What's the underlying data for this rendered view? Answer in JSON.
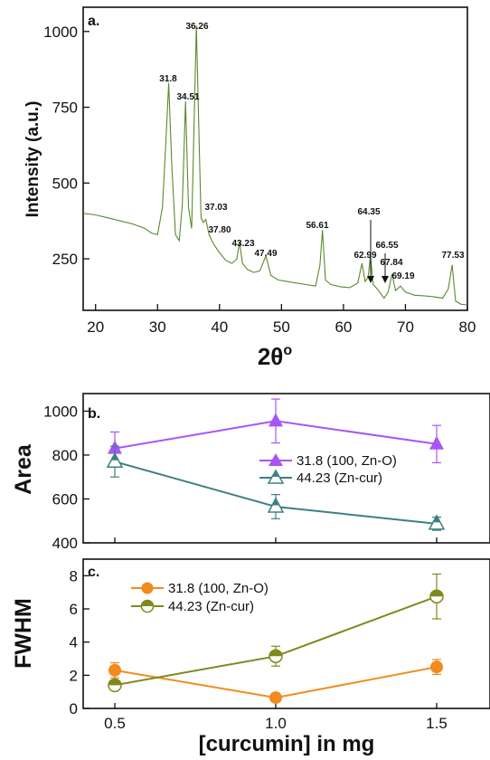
{
  "chart_data": [
    {
      "type": "line",
      "panel_label": "a.",
      "xlabel": "2θ",
      "xlabel_sup": "o",
      "ylabel": "Intensity (a.u.)",
      "xlim": [
        18,
        80
      ],
      "ylim": [
        80,
        1080
      ],
      "x_ticks": [
        20,
        30,
        40,
        50,
        60,
        70,
        80
      ],
      "y_ticks": [
        250,
        500,
        750,
        1000
      ],
      "line_color": "#5a8a2e",
      "series": [
        {
          "x": [
            18,
            20,
            22,
            24,
            26,
            28,
            29,
            30,
            30.8,
            31.3,
            31.8,
            32.3,
            32.9,
            33.5,
            34.0,
            34.51,
            35.0,
            35.5,
            36.26,
            36.8,
            37.03,
            37.4,
            37.8,
            38.3,
            39,
            40,
            41,
            42,
            42.8,
            43.23,
            43.7,
            44.5,
            45.5,
            46.5,
            47.49,
            48.3,
            49.5,
            51,
            52.5,
            54,
            55.5,
            56.2,
            56.61,
            57.1,
            58,
            59.5,
            61,
            62.3,
            62.99,
            63.5,
            64.0,
            64.35,
            64.8,
            65.5,
            66.55,
            67.2,
            67.84,
            68.4,
            69.19,
            70,
            71.5,
            73,
            74.5,
            76,
            76.9,
            77.53,
            78.1,
            79,
            80
          ],
          "y": [
            400,
            395,
            385,
            375,
            365,
            350,
            335,
            330,
            420,
            620,
            830,
            560,
            330,
            310,
            430,
            770,
            420,
            350,
            1020,
            560,
            385,
            370,
            380,
            330,
            300,
            270,
            245,
            235,
            250,
            305,
            235,
            215,
            205,
            210,
            260,
            195,
            180,
            175,
            170,
            165,
            160,
            230,
            345,
            180,
            165,
            158,
            155,
            170,
            235,
            175,
            190,
            260,
            165,
            150,
            120,
            140,
            200,
            145,
            160,
            140,
            130,
            128,
            125,
            120,
            150,
            230,
            110,
            100,
            98
          ]
        }
      ],
      "peak_labels": [
        "31.8",
        "34.51",
        "36.26",
        "37.03",
        "37.80",
        "43.23",
        "47.49",
        "56.61",
        "62.99",
        "64.35",
        "66.55",
        "67.84",
        "69.19",
        "77.53"
      ]
    },
    {
      "type": "line",
      "panel_label": "b.",
      "ylabel": "Area",
      "x": [
        0.5,
        1.0,
        1.5
      ],
      "ylim": [
        400,
        1080
      ],
      "y_ticks": [
        400,
        600,
        800,
        1000
      ],
      "series": [
        {
          "name": "31.8 (100, Zn-O)",
          "color": "#a855f7",
          "values": [
            830,
            955,
            850
          ],
          "errors": [
            75,
            100,
            85
          ]
        },
        {
          "name": "44.23 (Zn-cur)",
          "color": "#3f8080",
          "values": [
            770,
            565,
            487
          ],
          "errors": [
            70,
            55,
            30
          ]
        }
      ]
    },
    {
      "type": "line",
      "panel_label": "c.",
      "ylabel": "FWHM",
      "xlabel": "[curcumin] in mg",
      "x": [
        0.5,
        1.0,
        1.5
      ],
      "x_ticks": [
        "0.5",
        "1.0",
        "1.5"
      ],
      "ylim": [
        0,
        9
      ],
      "y_ticks": [
        0,
        2,
        4,
        6,
        8
      ],
      "series": [
        {
          "name": "31.8 (100, Zn-O)",
          "color": "#f08c1e",
          "values": [
            2.3,
            0.65,
            2.5
          ],
          "errors": [
            0.45,
            0.2,
            0.45
          ]
        },
        {
          "name": "44.23 (Zn-cur)",
          "color": "#7f8a1e",
          "values": [
            1.4,
            3.15,
            6.75
          ],
          "errors": [
            0.2,
            0.6,
            1.35
          ]
        }
      ]
    }
  ]
}
